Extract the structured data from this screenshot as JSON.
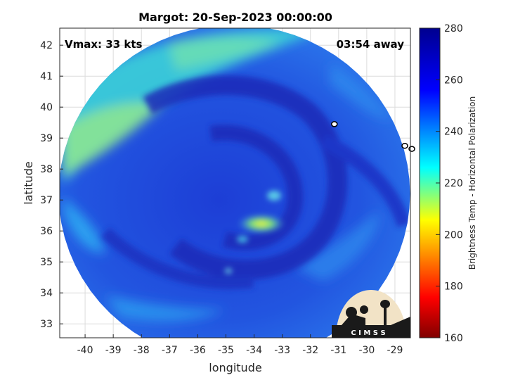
{
  "title": "Margot: 20-Sep-2023 00:00:00",
  "vmax_label": "Vmax: 33 kts",
  "time_away": "03:54 away",
  "axes": {
    "xlabel": "longitude",
    "ylabel": "latitude",
    "xlim": [
      -40.9,
      -28.45
    ],
    "ylim": [
      32.55,
      42.55
    ],
    "xticks": [
      -40,
      -39,
      -38,
      -37,
      -36,
      -35,
      -34,
      -33,
      -32,
      -31,
      -30,
      -29
    ],
    "yticks": [
      33,
      34,
      35,
      36,
      37,
      38,
      39,
      40,
      41,
      42
    ],
    "grid": true
  },
  "colorbar": {
    "label": "Brightness Temp - Horizontal Polarization",
    "range": [
      160,
      280
    ],
    "ticks": [
      160,
      180,
      200,
      220,
      240,
      260,
      280
    ],
    "colormap": [
      "#800000",
      "#ff0000",
      "#ffff00",
      "#00ffff",
      "#0000ff",
      "#00008f"
    ]
  },
  "swath": {
    "center_lon": -34.7,
    "center_lat": 37.2,
    "storm_center_lon": -34.1,
    "storm_center_lat": 36.2
  },
  "islands": [
    {
      "lon": -31.15,
      "lat": 39.45
    },
    {
      "lon": -28.65,
      "lat": 38.75
    },
    {
      "lon": -28.4,
      "lat": 38.65
    }
  ],
  "logo": {
    "text": "C I M S S"
  },
  "colors": {
    "background": "#ffffff",
    "axis": "#262626",
    "grid": "#dcdcdc",
    "deep_cold": "#1a2bb8",
    "warm_band": "#4ad8c4",
    "core": "#e6f04a"
  }
}
